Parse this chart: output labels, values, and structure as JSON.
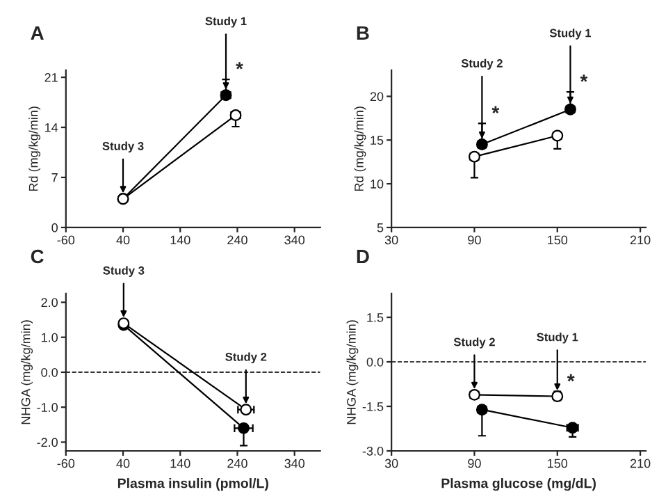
{
  "chart_data": [
    {
      "type": "line",
      "title": "A",
      "ylabel": "Rd (mg/kg/min)",
      "xlim": [
        -60,
        385
      ],
      "xticks": [
        -60,
        40,
        140,
        240,
        340
      ],
      "ylim": [
        0,
        22
      ],
      "yticks": [
        0,
        7,
        14,
        21
      ],
      "marker": "circle",
      "grid": false,
      "legend": false,
      "series": [
        {
          "color": "#000000",
          "x": [
            40,
            220
          ],
          "values": [
            4.0,
            18.5
          ],
          "errors": [
            null,
            [
              18.5,
              20.7
            ]
          ],
          "xerrors": [
            null,
            [
              212,
              228
            ]
          ]
        },
        {
          "color": "#ffffff",
          "x": [
            40,
            237
          ],
          "values": [
            4.0,
            15.7
          ],
          "errors": [
            null,
            [
              14.1,
              15.7
            ]
          ],
          "xerrors": [
            null,
            [
              229,
              245
            ]
          ]
        }
      ],
      "annotations": [
        {
          "text": "Study 3",
          "x": 40,
          "y": 4.0
        },
        {
          "text": "*",
          "x": 220,
          "y": 20.7
        },
        {
          "text": "Study 1",
          "x": 220,
          "y": 18.5
        }
      ]
    },
    {
      "type": "line",
      "title": "B",
      "ylabel": "Rd (mg/kg/min)",
      "xlim": [
        30,
        214
      ],
      "xticks": [
        30,
        90,
        150,
        210
      ],
      "ylim": [
        5,
        23
      ],
      "yticks": [
        5,
        10,
        15,
        20
      ],
      "marker": "circle",
      "grid": false,
      "legend": false,
      "series": [
        {
          "color": "#000000",
          "x": [
            95.5,
            159.4
          ],
          "values": [
            14.5,
            18.5
          ],
          "errors": [
            [
              14.5,
              16.9
            ],
            [
              18.5,
              20.5
            ]
          ],
          "xerrors": [
            [
              92.5,
              98.5
            ],
            [
              156.4,
              162.4
            ]
          ]
        },
        {
          "color": "#ffffff",
          "x": [
            90,
            150
          ],
          "values": [
            13.1,
            15.5
          ],
          "errors": [
            [
              10.7,
              13.1
            ],
            [
              14.0,
              15.5
            ]
          ],
          "xerrors": [
            [
              87,
              93
            ],
            [
              147,
              153
            ]
          ]
        }
      ],
      "annotations": [
        {
          "text": "*",
          "x": 95.5,
          "y": 16.9
        },
        {
          "text": "Study 2",
          "x": 95.5,
          "y": 14.5
        },
        {
          "text": "*",
          "x": 159.4,
          "y": 20.5
        },
        {
          "text": "Study 1",
          "x": 159.4,
          "y": 18.5
        }
      ]
    },
    {
      "type": "line",
      "title": "C",
      "xlabel": "Plasma insulin (pmol/L)",
      "ylabel": "NHGA (mg/kg/min)",
      "xlim": [
        -60,
        385
      ],
      "xticks": [
        -60,
        40,
        140,
        240,
        340
      ],
      "ylim": [
        -2.25,
        2.25
      ],
      "yticks": [
        {
          "value": -2,
          "label": "-2.0"
        },
        {
          "value": -1,
          "label": "-1.0"
        },
        {
          "value": 0,
          "label": "0.0"
        },
        {
          "value": 1,
          "label": "1.0"
        },
        {
          "value": 2,
          "label": "2.0"
        }
      ],
      "marker": "circle",
      "grid": false,
      "legend": false,
      "ref_lines": [
        {
          "axis": "y",
          "value": 0,
          "line_style": "dashed"
        }
      ],
      "series": [
        {
          "color": "#000000",
          "x": [
            41,
            251
          ],
          "values": [
            1.35,
            -1.6
          ],
          "errors": [
            null,
            [
              -2.1,
              -1.6
            ]
          ],
          "xerrors": [
            null,
            [
              235,
              267
            ]
          ]
        },
        {
          "color": "#ffffff",
          "x": [
            41,
            255
          ],
          "values": [
            1.4,
            -1.07
          ],
          "errors": [
            null,
            null
          ],
          "xerrors": [
            null,
            [
              241,
              269
            ]
          ]
        }
      ],
      "annotations": [
        {
          "text": "Study 3",
          "x": 41,
          "y": 1.4
        },
        {
          "text": "Study 2",
          "x": 255,
          "y": -1.07
        }
      ]
    },
    {
      "type": "line",
      "title": "D",
      "xlabel": "Plasma glucose (mg/dL)",
      "ylabel": "NHGA (mg/kg/min)",
      "xlim": [
        30,
        214
      ],
      "xticks": [
        30,
        90,
        150,
        210
      ],
      "ylim": [
        -3.0,
        2.3
      ],
      "yticks": [
        {
          "value": -3,
          "label": "-3.0"
        },
        {
          "value": -1.5,
          "label": "-1.5"
        },
        {
          "value": 0,
          "label": "0.0"
        },
        {
          "value": 1.5,
          "label": "1.5"
        }
      ],
      "marker": "circle",
      "grid": false,
      "legend": false,
      "ref_lines": [
        {
          "axis": "y",
          "value": 0,
          "line_style": "dashed"
        }
      ],
      "series": [
        {
          "color": "#000000",
          "x": [
            95.5,
            161
          ],
          "values": [
            -1.61,
            -2.22
          ],
          "errors": [
            [
              -2.49,
              -1.61
            ],
            [
              -2.53,
              -2.22
            ]
          ],
          "xerrors": [
            [
              92.5,
              98.5
            ],
            [
              157,
              165
            ]
          ]
        },
        {
          "color": "#ffffff",
          "x": [
            90,
            150
          ],
          "values": [
            -1.11,
            -1.16
          ],
          "errors": [
            null,
            [
              -1.3,
              -1.0
            ]
          ],
          "xerrors": [
            [
              87,
              93
            ],
            [
              147,
              153
            ]
          ]
        }
      ],
      "annotations": [
        {
          "text": "Study 2",
          "x": 90,
          "y": -1.11
        },
        {
          "text": "*",
          "x": 150,
          "y": -1.16
        },
        {
          "text": "Study 1",
          "x": 150,
          "y": -1.16
        }
      ]
    }
  ]
}
